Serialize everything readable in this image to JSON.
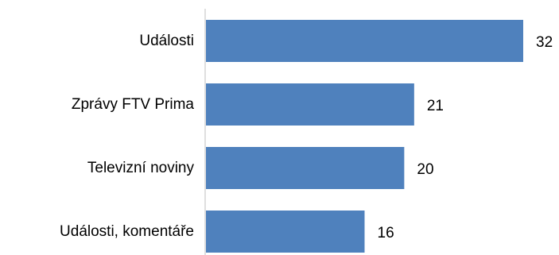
{
  "chart_data": {
    "type": "bar",
    "orientation": "horizontal",
    "categories": [
      "Události",
      "Zprávy FTV Prima",
      "Televizní noviny",
      "Události, komentáře"
    ],
    "values": [
      32,
      21,
      20,
      16
    ],
    "title": "",
    "xlabel": "",
    "ylabel": "",
    "xlim": [
      0,
      32
    ],
    "grid": false,
    "legend": "none",
    "data_labels": true,
    "colors": {
      "bar": "#4F81BD",
      "axis": "#BFBFBF",
      "text": "#000000"
    }
  }
}
